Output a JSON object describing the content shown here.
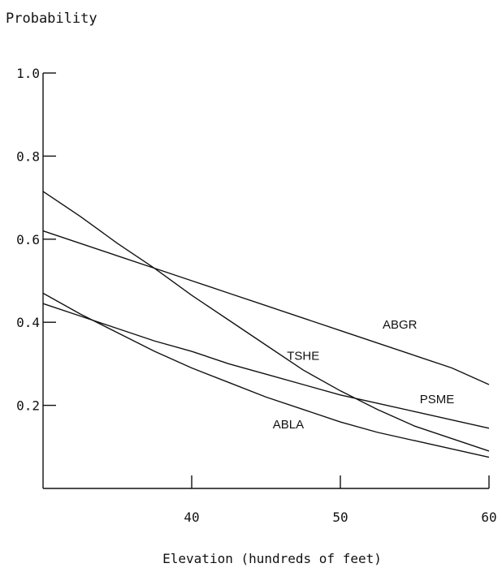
{
  "chart_data": {
    "type": "line",
    "title": "Probability",
    "xlabel": "Elevation (hundreds of feet)",
    "ylabel": "",
    "xlim": [
      30,
      60
    ],
    "ylim": [
      0,
      1.0
    ],
    "x_ticks": [
      40,
      50,
      60
    ],
    "x_tick_labels": [
      "40",
      "50",
      "60"
    ],
    "y_ticks": [
      0.2,
      0.4,
      0.6,
      0.8,
      1.0
    ],
    "y_tick_labels": [
      "0.2",
      "0.4",
      "0.6",
      "0.8",
      "1.0"
    ],
    "grid": false,
    "legend": "none",
    "x": [
      30,
      32.5,
      35,
      37.5,
      40,
      42.5,
      45,
      47.5,
      50,
      52.5,
      55,
      57.5,
      60
    ],
    "series": [
      {
        "name": "ABGR",
        "values": [
          0.62,
          0.59,
          0.56,
          0.53,
          0.5,
          0.47,
          0.44,
          0.41,
          0.38,
          0.35,
          0.32,
          0.29,
          0.25
        ]
      },
      {
        "name": "TSHE",
        "values": [
          0.715,
          0.655,
          0.59,
          0.53,
          0.465,
          0.405,
          0.345,
          0.285,
          0.235,
          0.19,
          0.15,
          0.12,
          0.09
        ]
      },
      {
        "name": "PSME",
        "values": [
          0.445,
          0.415,
          0.385,
          0.355,
          0.33,
          0.3,
          0.275,
          0.25,
          0.225,
          0.205,
          0.185,
          0.165,
          0.145
        ]
      },
      {
        "name": "ABLA",
        "values": [
          0.47,
          0.42,
          0.375,
          0.33,
          0.29,
          0.255,
          0.22,
          0.19,
          0.16,
          0.135,
          0.115,
          0.095,
          0.075
        ]
      }
    ],
    "series_labels": [
      {
        "name": "ABGR",
        "x": 54,
        "y": 0.385
      },
      {
        "name": "TSHE",
        "x": 47.5,
        "y": 0.31
      },
      {
        "name": "PSME",
        "x": 56.5,
        "y": 0.205
      },
      {
        "name": "ABLA",
        "x": 46.5,
        "y": 0.145
      }
    ]
  }
}
